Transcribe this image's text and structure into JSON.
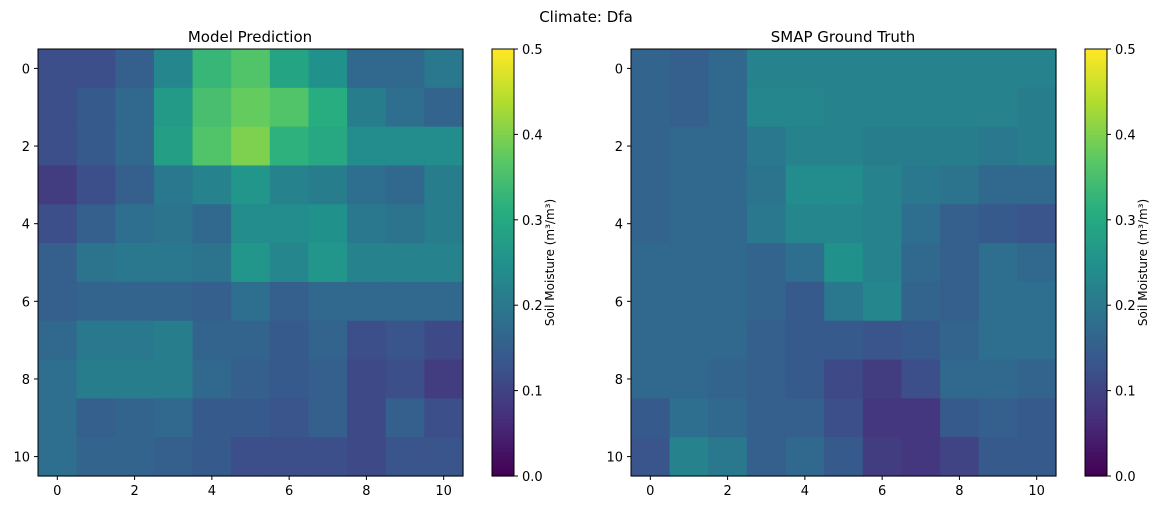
{
  "chart_data": {
    "type": "heatmap",
    "suptitle": "Climate: Dfa",
    "colormap": "viridis",
    "colorbar": {
      "label": "Soil Moisture (m³/m³)",
      "vmin": 0.0,
      "vmax": 0.5,
      "ticks": [
        "0.0",
        "0.1",
        "0.2",
        "0.3",
        "0.4",
        "0.5"
      ]
    },
    "x_ticks": [
      "0",
      "2",
      "4",
      "6",
      "8",
      "10"
    ],
    "y_ticks": [
      "0",
      "2",
      "4",
      "6",
      "8",
      "10"
    ],
    "panels": [
      {
        "title": "Model Prediction",
        "grid": [
          [
            0.12,
            0.12,
            0.15,
            0.23,
            0.33,
            0.36,
            0.29,
            0.25,
            0.17,
            0.17,
            0.2
          ],
          [
            0.12,
            0.14,
            0.17,
            0.27,
            0.35,
            0.38,
            0.36,
            0.31,
            0.21,
            0.18,
            0.16
          ],
          [
            0.12,
            0.14,
            0.17,
            0.28,
            0.36,
            0.4,
            0.32,
            0.3,
            0.24,
            0.24,
            0.24
          ],
          [
            0.09,
            0.12,
            0.15,
            0.2,
            0.22,
            0.26,
            0.22,
            0.21,
            0.18,
            0.17,
            0.21
          ],
          [
            0.12,
            0.15,
            0.18,
            0.19,
            0.17,
            0.24,
            0.24,
            0.25,
            0.2,
            0.19,
            0.21
          ],
          [
            0.15,
            0.19,
            0.2,
            0.2,
            0.19,
            0.26,
            0.23,
            0.26,
            0.22,
            0.22,
            0.22
          ],
          [
            0.15,
            0.16,
            0.16,
            0.16,
            0.15,
            0.18,
            0.15,
            0.17,
            0.17,
            0.17,
            0.17
          ],
          [
            0.17,
            0.2,
            0.2,
            0.21,
            0.16,
            0.16,
            0.14,
            0.16,
            0.12,
            0.13,
            0.11
          ],
          [
            0.18,
            0.21,
            0.21,
            0.21,
            0.17,
            0.15,
            0.14,
            0.15,
            0.11,
            0.12,
            0.09
          ],
          [
            0.18,
            0.15,
            0.16,
            0.17,
            0.14,
            0.14,
            0.13,
            0.15,
            0.11,
            0.15,
            0.12
          ],
          [
            0.18,
            0.16,
            0.16,
            0.15,
            0.14,
            0.12,
            0.12,
            0.12,
            0.11,
            0.13,
            0.13
          ]
        ]
      },
      {
        "title": "SMAP Ground Truth",
        "grid": [
          [
            0.16,
            0.15,
            0.17,
            0.22,
            0.22,
            0.22,
            0.22,
            0.22,
            0.22,
            0.22,
            0.22
          ],
          [
            0.16,
            0.15,
            0.17,
            0.23,
            0.23,
            0.22,
            0.22,
            0.22,
            0.22,
            0.22,
            0.21
          ],
          [
            0.16,
            0.17,
            0.17,
            0.2,
            0.22,
            0.22,
            0.21,
            0.21,
            0.21,
            0.2,
            0.21
          ],
          [
            0.16,
            0.17,
            0.17,
            0.19,
            0.24,
            0.24,
            0.22,
            0.2,
            0.19,
            0.17,
            0.17
          ],
          [
            0.16,
            0.17,
            0.17,
            0.2,
            0.23,
            0.23,
            0.22,
            0.18,
            0.15,
            0.14,
            0.13
          ],
          [
            0.17,
            0.17,
            0.17,
            0.16,
            0.18,
            0.25,
            0.22,
            0.17,
            0.15,
            0.18,
            0.17
          ],
          [
            0.17,
            0.17,
            0.17,
            0.16,
            0.14,
            0.2,
            0.23,
            0.16,
            0.15,
            0.18,
            0.18
          ],
          [
            0.17,
            0.17,
            0.17,
            0.15,
            0.14,
            0.14,
            0.13,
            0.14,
            0.16,
            0.18,
            0.18
          ],
          [
            0.17,
            0.17,
            0.16,
            0.15,
            0.14,
            0.11,
            0.09,
            0.12,
            0.17,
            0.17,
            0.16
          ],
          [
            0.14,
            0.18,
            0.17,
            0.15,
            0.15,
            0.12,
            0.08,
            0.08,
            0.14,
            0.15,
            0.14
          ],
          [
            0.13,
            0.22,
            0.2,
            0.15,
            0.17,
            0.14,
            0.09,
            0.08,
            0.1,
            0.14,
            0.14
          ]
        ]
      }
    ]
  }
}
